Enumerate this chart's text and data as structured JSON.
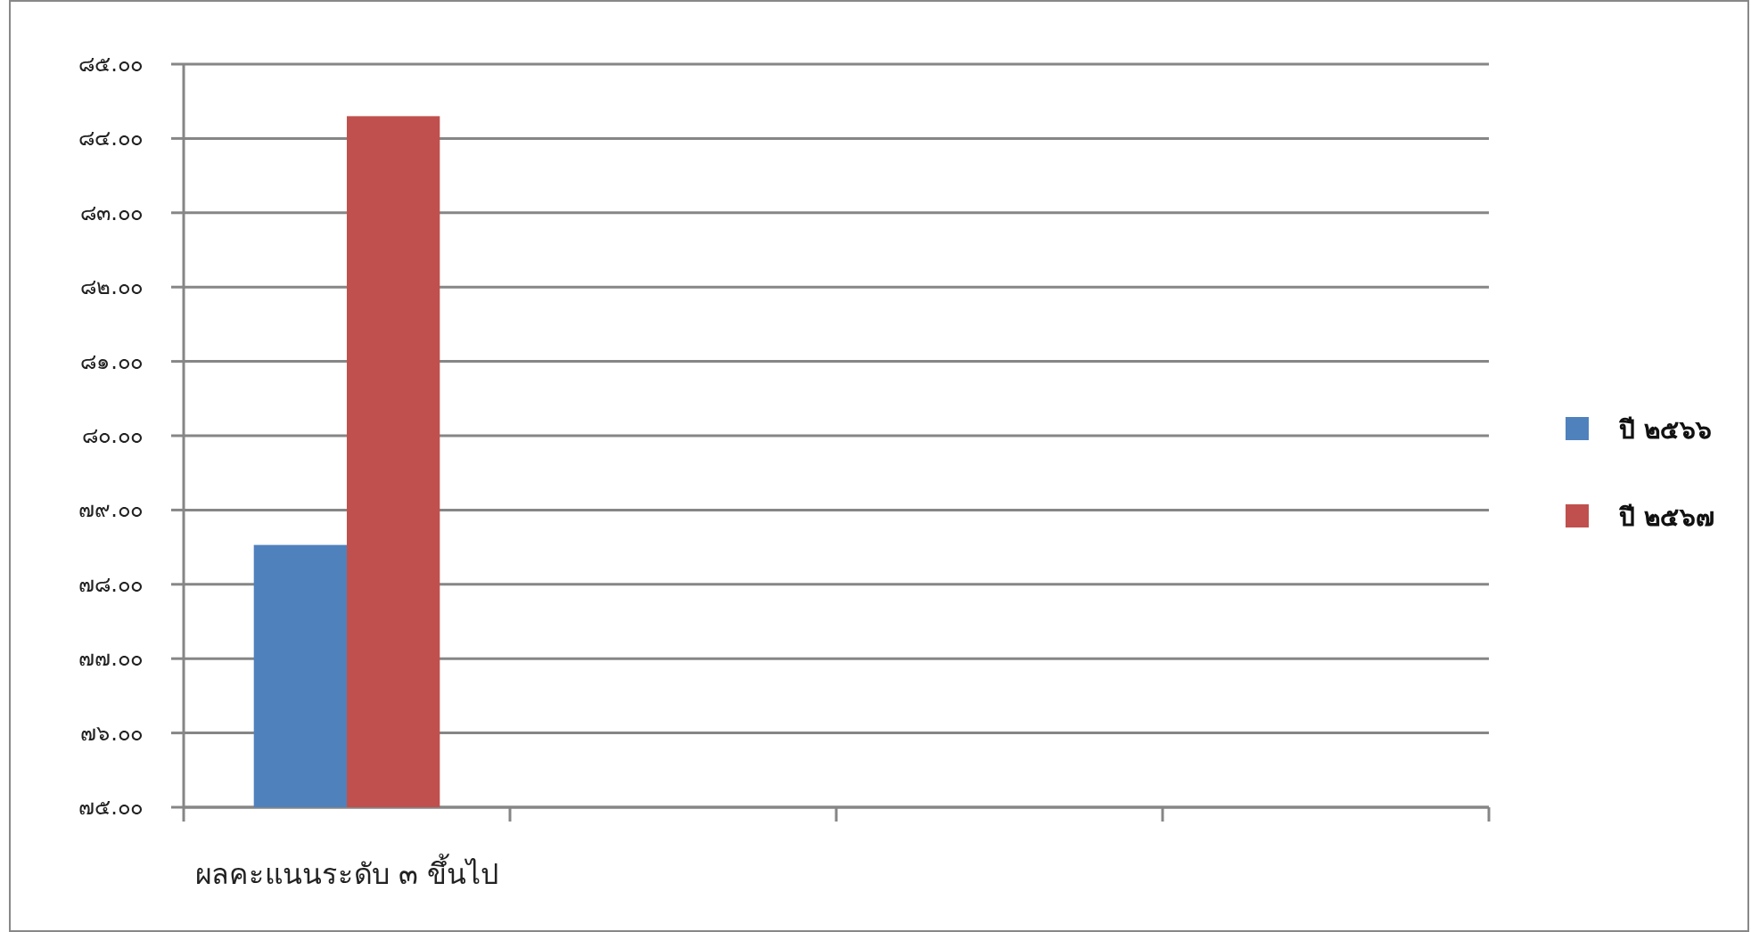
{
  "chart_data": {
    "type": "bar",
    "categories": [
      "ผลคะแนนระดับ ๓ ขึ้นไป",
      null,
      null,
      null
    ],
    "series": [
      {
        "name": "ปี ๒๕๖๖",
        "color": "#4f81bd",
        "values": [
          78.53,
          null,
          null,
          null
        ]
      },
      {
        "name": "ปี ๒๕๖๗",
        "color": "#c0504d",
        "values": [
          84.3,
          null,
          null,
          null
        ]
      }
    ],
    "ylim": [
      75,
      85
    ],
    "yticks": [
      {
        "value": 75,
        "label": "๗๕.๐๐"
      },
      {
        "value": 76,
        "label": "๗๖.๐๐"
      },
      {
        "value": 77,
        "label": "๗๗.๐๐"
      },
      {
        "value": 78,
        "label": "๗๘.๐๐"
      },
      {
        "value": 79,
        "label": "๗๙.๐๐"
      },
      {
        "value": 80,
        "label": "๘๐.๐๐"
      },
      {
        "value": 81,
        "label": "๘๑.๐๐"
      },
      {
        "value": 82,
        "label": "๘๒.๐๐"
      },
      {
        "value": 83,
        "label": "๘๓.๐๐"
      },
      {
        "value": 84,
        "label": "๘๔.๐๐"
      },
      {
        "value": 85,
        "label": "๘๕.๐๐"
      }
    ],
    "grid": "y",
    "legend": "right"
  }
}
